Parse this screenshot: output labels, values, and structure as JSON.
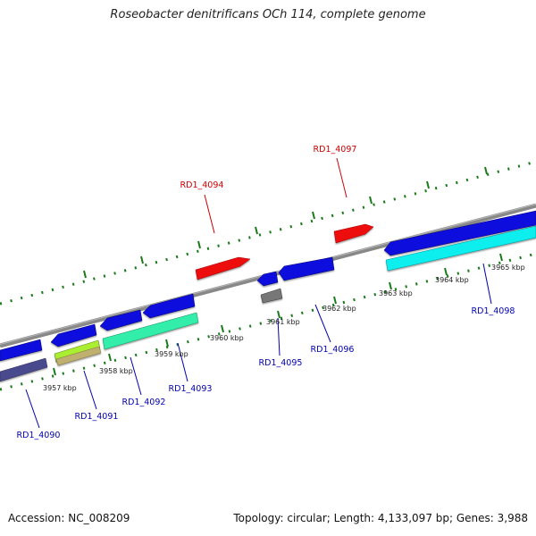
{
  "title": "Roseobacter denitrificans OCh 114, complete genome",
  "accession": "Accession: NC_008209",
  "summary": "Topology: circular; Length: 4,133,097 bp; Genes: 3,988",
  "colors": {
    "forward_label": "#cc0000",
    "reverse_label": "#0000b0",
    "backbone": "#888888",
    "ticks": "#1a7a1a"
  },
  "kbp_labels": [
    "3957 kbp",
    "3958 kbp",
    "3959 kbp",
    "3960 kbp",
    "3961 kbp",
    "3962 kbp",
    "3963 kbp",
    "3964 kbp",
    "3965 kbp"
  ],
  "gene_labels": [
    "RD1_4090",
    "RD1_4091",
    "RD1_4092",
    "RD1_4093",
    "RD1_4094",
    "RD1_4095",
    "RD1_4096",
    "RD1_4097",
    "RD1_4098"
  ]
}
